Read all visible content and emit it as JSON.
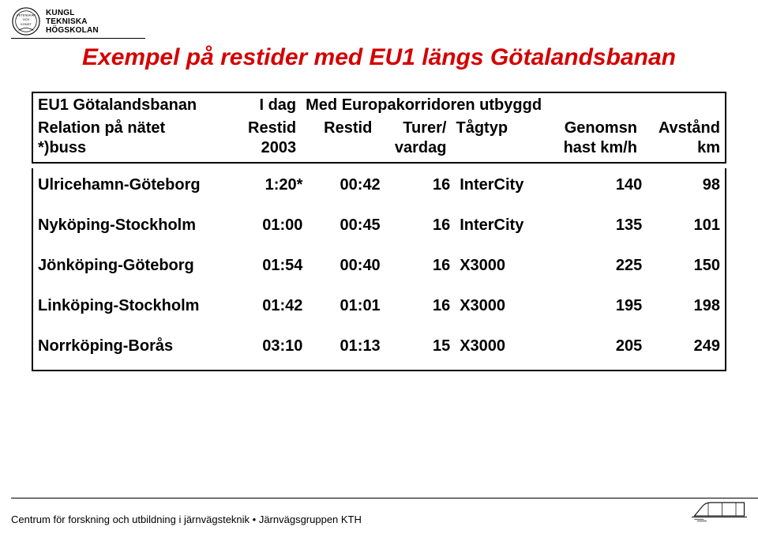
{
  "logo": {
    "line1": "KUNGL",
    "line2": "TEKNISKA",
    "line3": "HÖGSKOLAN",
    "emblem_text_top": "VETENSKAP",
    "emblem_text_mid": "OCH",
    "emblem_text_bot": "KONST"
  },
  "title": "Exempel på restider med EU1 längs Götalandsbanan",
  "colors": {
    "title": "#d40000",
    "text": "#000000",
    "border": "#000000",
    "bg": "#ffffff"
  },
  "header": {
    "row1": {
      "col0": "EU1 Götalandsbanan",
      "col1": "I dag",
      "col23": "Med Europakorridoren utbyggd",
      "col4": "",
      "col5": "",
      "col6": ""
    },
    "row2": {
      "col0": "Relation på nätet",
      "col1": "Restid",
      "col2": "Restid",
      "col3": "Turer/",
      "col4": "Tågtyp",
      "col5": "Genomsn",
      "col6": "Avstånd"
    },
    "row3": {
      "col0": "*)buss",
      "col1": "2003",
      "col2": "",
      "col3": "vardag",
      "col4": "",
      "col5": "hast km/h",
      "col6": "km"
    }
  },
  "rows": [
    {
      "relation": "Ulricehamn-Göteborg",
      "restid2003": "1:20*",
      "restid": "00:42",
      "turer": "16",
      "tagtyp": "InterCity",
      "hast": "140",
      "avstand": "98"
    },
    {
      "relation": "Nyköping-Stockholm",
      "restid2003": "01:00",
      "restid": "00:45",
      "turer": "16",
      "tagtyp": "InterCity",
      "hast": "135",
      "avstand": "101"
    },
    {
      "relation": "Jönköping-Göteborg",
      "restid2003": "01:54",
      "restid": "00:40",
      "turer": "16",
      "tagtyp": "X3000",
      "hast": "225",
      "avstand": "150"
    },
    {
      "relation": "Linköping-Stockholm",
      "restid2003": "01:42",
      "restid": "01:01",
      "turer": "16",
      "tagtyp": "X3000",
      "hast": "195",
      "avstand": "198"
    },
    {
      "relation": "Norrköping-Borås",
      "restid2003": "03:10",
      "restid": "01:13",
      "turer": "15",
      "tagtyp": "X3000",
      "hast": "205",
      "avstand": "249"
    }
  ],
  "footer": "Centrum för forskning och utbildning i järnvägsteknik • Järnvägsgruppen  KTH"
}
